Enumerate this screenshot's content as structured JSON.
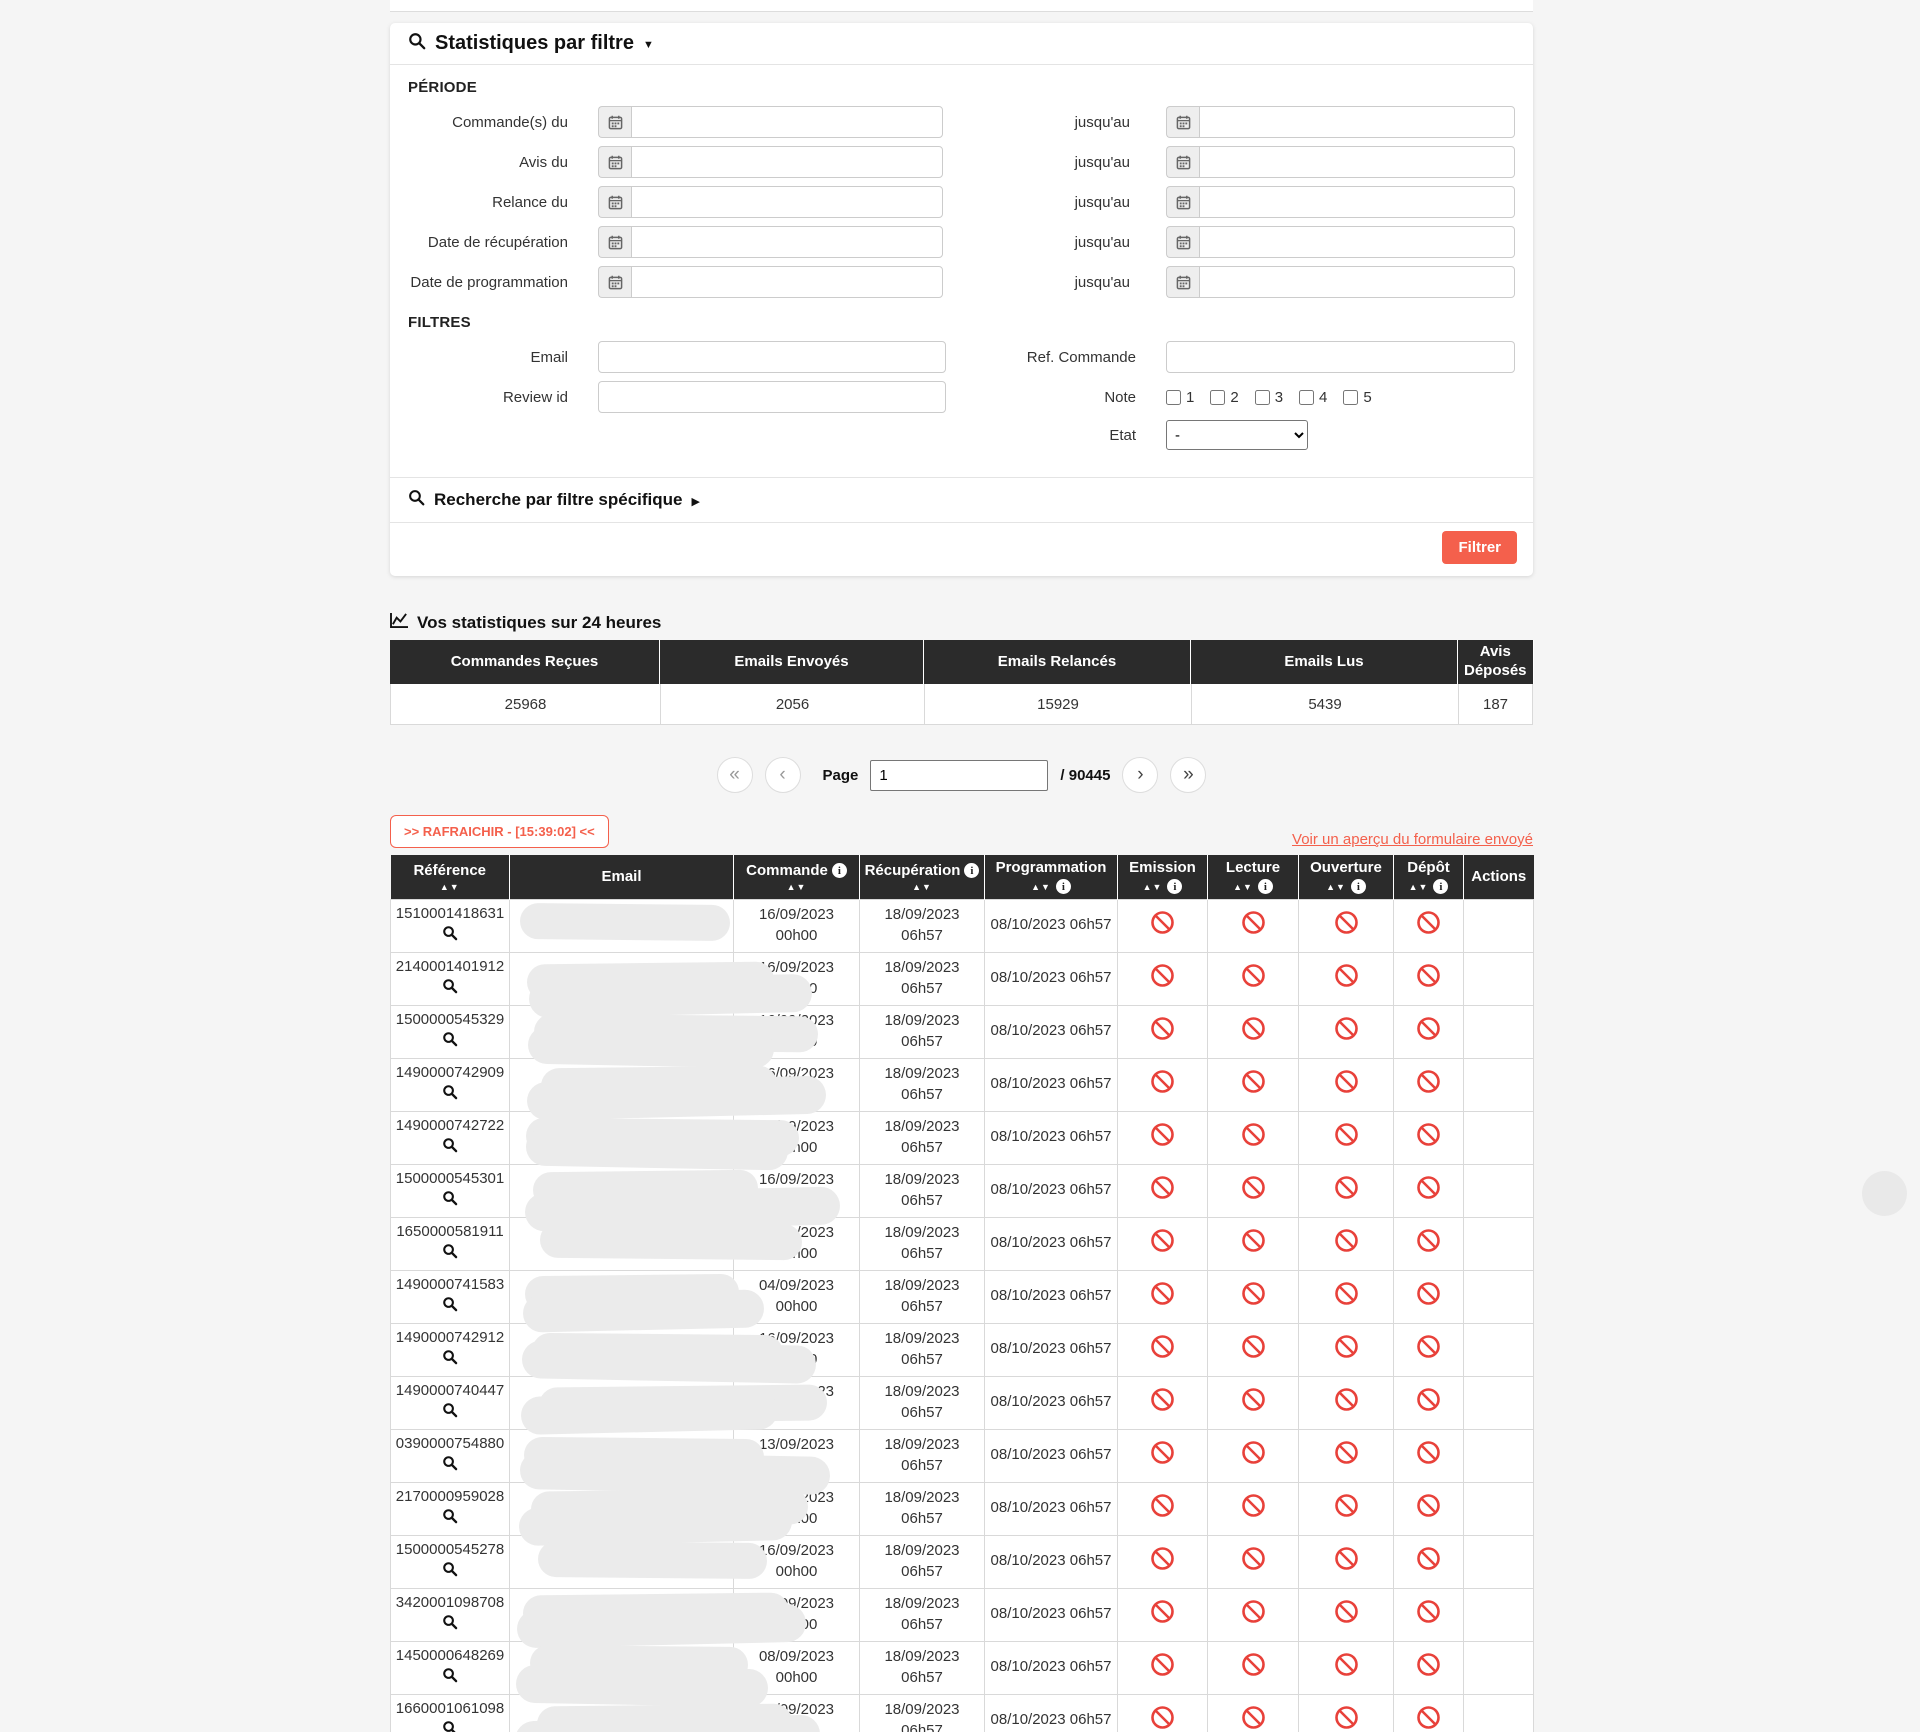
{
  "colors": {
    "accent": "#f4604c",
    "header_dark": "#2b2b2b",
    "icon_red": "#e8413a"
  },
  "icons": {
    "caret_down": "▼",
    "caret_right": "▶",
    "sort": "▲▼",
    "info": "i",
    "first": "«",
    "prev": "‹",
    "next": "›",
    "last": "»"
  },
  "filter_panel": {
    "title": "Statistiques par filtre",
    "periode_label": "PÉRIODE",
    "filtres_label": "FILTRES",
    "until_label": "jusqu'au",
    "date_rows": [
      {
        "label": "Commande(s) du"
      },
      {
        "label": "Avis du"
      },
      {
        "label": "Relance du"
      },
      {
        "label": "Date de récupération"
      },
      {
        "label": "Date de programmation"
      }
    ],
    "email_label": "Email",
    "review_label": "Review id",
    "ref_commande_label": "Ref. Commande",
    "note_label": "Note",
    "note_options": [
      "1",
      "2",
      "3",
      "4",
      "5"
    ],
    "etat_label": "Etat",
    "etat_value": "-",
    "specific_search_title": "Recherche par filtre spécifique",
    "filter_button": "Filtrer"
  },
  "stats": {
    "title": "Vos statistiques sur 24 heures",
    "columns": [
      {
        "label": "Commandes Reçues",
        "value": "25968"
      },
      {
        "label": "Emails Envoyés",
        "value": "2056"
      },
      {
        "label": "Emails Relancés",
        "value": "15929"
      },
      {
        "label": "Emails Lus",
        "value": "5439"
      },
      {
        "label": "Avis Déposés",
        "value": "187"
      }
    ]
  },
  "pagination": {
    "page_label": "Page",
    "page_value": "1",
    "total_label": "/ 90445"
  },
  "refresh_button_label": ">> RAFRAICHIR - [15:39:02] <<",
  "preview_link_label": "Voir un aperçu du formulaire envoyé",
  "table": {
    "headers": [
      {
        "label": "Référence",
        "sort": true,
        "info": null
      },
      {
        "label": "Email",
        "sort": false,
        "info": null
      },
      {
        "label": "Commande",
        "sort": true,
        "info": "top"
      },
      {
        "label": "Récupération",
        "sort": true,
        "info": "top"
      },
      {
        "label": "Programmation",
        "sort": true,
        "info": "bottom"
      },
      {
        "label": "Emission",
        "sort": true,
        "info": "bottom"
      },
      {
        "label": "Lecture",
        "sort": true,
        "info": "bottom"
      },
      {
        "label": "Ouverture",
        "sort": true,
        "info": "bottom"
      },
      {
        "label": "Dépôt",
        "sort": true,
        "info": "bottom"
      },
      {
        "label": "Actions",
        "sort": false,
        "info": null
      }
    ],
    "rows": [
      {
        "reference": "1510001418631",
        "commande_date": "16/09/2023",
        "commande_time": "00h00",
        "recup_date": "18/09/2023",
        "recup_time": "06h57",
        "programmation": "08/10/2023 06h57",
        "emission": "blocked",
        "lecture": "blocked",
        "ouverture": "blocked",
        "depot": "blocked"
      },
      {
        "reference": "2140001401912",
        "commande_date": "16/09/2023",
        "commande_time": "00h00",
        "recup_date": "18/09/2023",
        "recup_time": "06h57",
        "programmation": "08/10/2023 06h57",
        "emission": "blocked",
        "lecture": "blocked",
        "ouverture": "blocked",
        "depot": "blocked"
      },
      {
        "reference": "1500000545329",
        "commande_date": "16/09/2023",
        "commande_time": "00h00",
        "recup_date": "18/09/2023",
        "recup_time": "06h57",
        "programmation": "08/10/2023 06h57",
        "emission": "blocked",
        "lecture": "blocked",
        "ouverture": "blocked",
        "depot": "blocked"
      },
      {
        "reference": "1490000742909",
        "commande_date": "16/09/2023",
        "commande_time": "00h00",
        "recup_date": "18/09/2023",
        "recup_time": "06h57",
        "programmation": "08/10/2023 06h57",
        "emission": "blocked",
        "lecture": "blocked",
        "ouverture": "blocked",
        "depot": "blocked"
      },
      {
        "reference": "1490000742722",
        "commande_date": "15/09/2023",
        "commande_time": "00h00",
        "recup_date": "18/09/2023",
        "recup_time": "06h57",
        "programmation": "08/10/2023 06h57",
        "emission": "blocked",
        "lecture": "blocked",
        "ouverture": "blocked",
        "depot": "blocked"
      },
      {
        "reference": "1500000545301",
        "commande_date": "16/09/2023",
        "commande_time": "00h00",
        "recup_date": "18/09/2023",
        "recup_time": "06h57",
        "programmation": "08/10/2023 06h57",
        "emission": "blocked",
        "lecture": "blocked",
        "ouverture": "blocked",
        "depot": "blocked"
      },
      {
        "reference": "1650000581911",
        "commande_date": "12/09/2023",
        "commande_time": "00h00",
        "recup_date": "18/09/2023",
        "recup_time": "06h57",
        "programmation": "08/10/2023 06h57",
        "emission": "blocked",
        "lecture": "blocked",
        "ouverture": "blocked",
        "depot": "blocked"
      },
      {
        "reference": "1490000741583",
        "commande_date": "04/09/2023",
        "commande_time": "00h00",
        "recup_date": "18/09/2023",
        "recup_time": "06h57",
        "programmation": "08/10/2023 06h57",
        "emission": "blocked",
        "lecture": "blocked",
        "ouverture": "blocked",
        "depot": "blocked"
      },
      {
        "reference": "1490000742912",
        "commande_date": "16/09/2023",
        "commande_time": "00h00",
        "recup_date": "18/09/2023",
        "recup_time": "06h57",
        "programmation": "08/10/2023 06h57",
        "emission": "blocked",
        "lecture": "blocked",
        "ouverture": "blocked",
        "depot": "blocked"
      },
      {
        "reference": "1490000740447",
        "commande_date": "28/08/2023",
        "commande_time": "00h00",
        "recup_date": "18/09/2023",
        "recup_time": "06h57",
        "programmation": "08/10/2023 06h57",
        "emission": "blocked",
        "lecture": "blocked",
        "ouverture": "blocked",
        "depot": "blocked"
      },
      {
        "reference": "0390000754880",
        "commande_date": "13/09/2023",
        "commande_time": "00h00",
        "recup_date": "18/09/2023",
        "recup_time": "06h57",
        "programmation": "08/10/2023 06h57",
        "emission": "blocked",
        "lecture": "blocked",
        "ouverture": "blocked",
        "depot": "blocked"
      },
      {
        "reference": "2170000959028",
        "commande_date": "16/09/2023",
        "commande_time": "00h00",
        "recup_date": "18/09/2023",
        "recup_time": "06h57",
        "programmation": "08/10/2023 06h57",
        "emission": "blocked",
        "lecture": "blocked",
        "ouverture": "blocked",
        "depot": "blocked"
      },
      {
        "reference": "1500000545278",
        "commande_date": "16/09/2023",
        "commande_time": "00h00",
        "recup_date": "18/09/2023",
        "recup_time": "06h57",
        "programmation": "08/10/2023 06h57",
        "emission": "blocked",
        "lecture": "blocked",
        "ouverture": "blocked",
        "depot": "blocked"
      },
      {
        "reference": "3420001098708",
        "commande_date": "16/09/2023",
        "commande_time": "00h00",
        "recup_date": "18/09/2023",
        "recup_time": "06h57",
        "programmation": "08/10/2023 06h57",
        "emission": "blocked",
        "lecture": "blocked",
        "ouverture": "blocked",
        "depot": "blocked"
      },
      {
        "reference": "1450000648269",
        "commande_date": "08/09/2023",
        "commande_time": "00h00",
        "recup_date": "18/09/2023",
        "recup_time": "06h57",
        "programmation": "08/10/2023 06h57",
        "emission": "blocked",
        "lecture": "blocked",
        "ouverture": "blocked",
        "depot": "blocked"
      },
      {
        "reference": "1660001061098",
        "commande_date": "16/09/2023",
        "commande_time": "00h00",
        "recup_date": "18/09/2023",
        "recup_time": "06h57",
        "programmation": "08/10/2023 06h57",
        "emission": "blocked",
        "lecture": "blocked",
        "ouverture": "blocked",
        "depot": "blocked"
      }
    ]
  }
}
